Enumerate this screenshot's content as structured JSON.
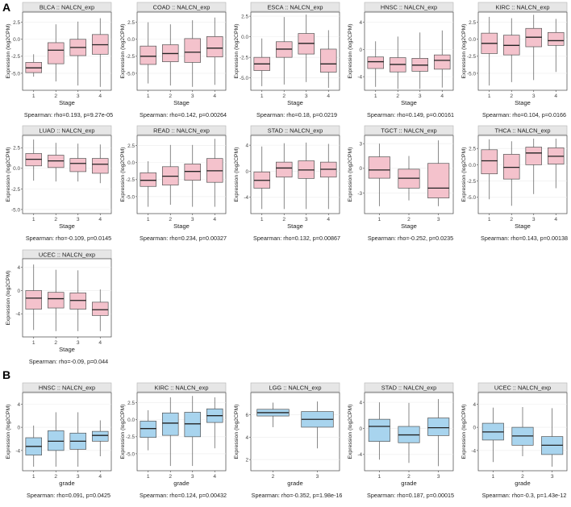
{
  "panel_labels": {
    "a": "A",
    "b": "B"
  },
  "colors": {
    "stage_fill": "#f4c2cc",
    "grade_fill": "#a8d4ee",
    "strip": "#e6e6e6",
    "box_line": "#555555"
  },
  "chart_data": [
    {
      "type": "boxplot",
      "panel": "A",
      "title": "BLCA :: NALCN_exp",
      "xlabel": "Stage",
      "ylabel": "Expression (log2CPM)",
      "ylim": [
        -7.5,
        4
      ],
      "yticks": [
        -5,
        -2.5,
        0,
        2.5
      ],
      "ytick_labels": [
        "-5.0",
        "-2.5",
        "0.0",
        "2.5"
      ],
      "categories": [
        "1",
        "2",
        "3",
        "4"
      ],
      "boxes": [
        {
          "wlo": -5.5,
          "q1": -4.9,
          "med": -4.2,
          "q3": -3.4,
          "whi": -2.2
        },
        {
          "wlo": -6.2,
          "q1": -3.6,
          "med": -1.6,
          "q3": -0.5,
          "whi": 2.2
        },
        {
          "wlo": -6.8,
          "q1": -2.4,
          "med": -1.2,
          "q3": 0.0,
          "whi": 2.6
        },
        {
          "wlo": -7.0,
          "q1": -2.2,
          "med": -0.8,
          "q3": 0.7,
          "whi": 3.1
        }
      ],
      "stat": "Spearman: rho=0.193, p=9.27e-05"
    },
    {
      "type": "boxplot",
      "panel": "A",
      "title": "COAD :: NALCN_exp",
      "xlabel": "Stage",
      "ylabel": "Expression (log2CPM)",
      "ylim": [
        -7.5,
        4
      ],
      "yticks": [
        -5,
        -2.5,
        0,
        2.5
      ],
      "ytick_labels": [
        "-5.0",
        "-2.5",
        "0.0",
        "2.5"
      ],
      "categories": [
        "1",
        "2",
        "3",
        "4"
      ],
      "boxes": [
        {
          "wlo": -6.5,
          "q1": -3.7,
          "med": -2.5,
          "q3": -1.0,
          "whi": 2.5
        },
        {
          "wlo": -6.8,
          "q1": -3.3,
          "med": -2.1,
          "q3": -0.8,
          "whi": 2.2
        },
        {
          "wlo": -7.0,
          "q1": -3.4,
          "med": -1.9,
          "q3": 0.1,
          "whi": 2.8
        },
        {
          "wlo": -6.7,
          "q1": -2.6,
          "med": -1.3,
          "q3": 0.4,
          "whi": 3.2
        }
      ],
      "stat": "Spearman: rho=0.142, p=0.00264"
    },
    {
      "type": "boxplot",
      "panel": "A",
      "title": "ESCA :: NALCN_exp",
      "xlabel": "Stage",
      "ylabel": "Expression (log2CPM)",
      "ylim": [
        -6.5,
        3
      ],
      "yticks": [
        -5.0,
        -2.5,
        0.0,
        2.5
      ],
      "ytick_labels": [
        "-5.0",
        "-2.5",
        "0.0",
        "2.5"
      ],
      "categories": [
        "1",
        "2",
        "3",
        "4"
      ],
      "boxes": [
        {
          "wlo": -6.0,
          "q1": -4.1,
          "med": -3.3,
          "q3": -2.5,
          "whi": -0.2
        },
        {
          "wlo": -5.8,
          "q1": -2.5,
          "med": -1.5,
          "q3": -0.6,
          "whi": 2.4
        },
        {
          "wlo": -5.5,
          "q1": -2.1,
          "med": -0.8,
          "q3": 0.4,
          "whi": 2.7
        },
        {
          "wlo": -6.2,
          "q1": -4.3,
          "med": -3.3,
          "q3": -1.5,
          "whi": 0.8
        }
      ],
      "stat": "Spearman: rho=0.18, p=0.0219"
    },
    {
      "type": "boxplot",
      "panel": "A",
      "title": "HNSC :: NALCN_exp",
      "xlabel": "Stage",
      "ylabel": "Expression (log2CPM)",
      "ylim": [
        -6,
        5.5
      ],
      "yticks": [
        -4,
        0,
        4
      ],
      "ytick_labels": [
        "-4",
        "0",
        "4"
      ],
      "categories": [
        "1",
        "2",
        "3",
        "4"
      ],
      "boxes": [
        {
          "wlo": -5.5,
          "q1": -2.8,
          "med": -1.8,
          "q3": -1.1,
          "whi": 1.2
        },
        {
          "wlo": -5.8,
          "q1": -3.3,
          "med": -2.2,
          "q3": -1.2,
          "whi": 1.9
        },
        {
          "wlo": -5.8,
          "q1": -3.2,
          "med": -2.3,
          "q3": -1.3,
          "whi": 2.5
        },
        {
          "wlo": -5.6,
          "q1": -2.9,
          "med": -1.6,
          "q3": -0.8,
          "whi": 2.8
        }
      ],
      "stat": "Spearman: rho=0.149, p=0.00161"
    },
    {
      "type": "boxplot",
      "panel": "A",
      "title": "KIRC :: NALCN_exp",
      "xlabel": "Stage",
      "ylabel": "Expression (log2CPM)",
      "ylim": [
        -7.5,
        4
      ],
      "yticks": [
        -5,
        -2.5,
        0,
        2.5
      ],
      "ytick_labels": [
        "-5.0",
        "-2.5",
        "0.0",
        "2.5"
      ],
      "categories": [
        "1",
        "2",
        "3",
        "4"
      ],
      "boxes": [
        {
          "wlo": -6.8,
          "q1": -2.1,
          "med": -0.6,
          "q3": 0.9,
          "whi": 3.3
        },
        {
          "wlo": -6.3,
          "q1": -2.3,
          "med": -0.9,
          "q3": 0.6,
          "whi": 3.1
        },
        {
          "wlo": -6.0,
          "q1": -1.1,
          "med": 0.3,
          "q3": 1.6,
          "whi": 3.6
        },
        {
          "wlo": -4.8,
          "q1": -0.9,
          "med": -0.2,
          "q3": 1.0,
          "whi": 3.0
        }
      ],
      "stat": "Spearman: rho=0.104, p=0.0166"
    },
    {
      "type": "boxplot",
      "panel": "A",
      "title": "LUAD :: NALCN_exp",
      "xlabel": "Stage",
      "ylabel": "Expression (log2CPM)",
      "ylim": [
        -5.5,
        4
      ],
      "yticks": [
        -5,
        -2.5,
        0,
        2.5
      ],
      "ytick_labels": [
        "-5.0",
        "-2.5",
        "0.0",
        "2.5"
      ],
      "categories": [
        "1",
        "2",
        "3",
        "4"
      ],
      "boxes": [
        {
          "wlo": -1.5,
          "q1": 0.3,
          "med": 1.1,
          "q3": 1.8,
          "whi": 3.5
        },
        {
          "wlo": -1.6,
          "q1": 0.1,
          "med": 0.9,
          "q3": 1.6,
          "whi": 3.1
        },
        {
          "wlo": -1.6,
          "q1": -0.4,
          "med": 0.6,
          "q3": 1.2,
          "whi": 3.0
        },
        {
          "wlo": -1.8,
          "q1": -0.6,
          "med": 0.5,
          "q3": 1.2,
          "whi": 2.9
        }
      ],
      "stat": "Spearman: rho=-0.109, p=0.0145"
    },
    {
      "type": "boxplot",
      "panel": "A",
      "title": "READ :: NALCN_exp",
      "xlabel": "Stage",
      "ylabel": "Expression (log2CPM)",
      "ylim": [
        -7.5,
        4
      ],
      "yticks": [
        -5,
        -2.5,
        0,
        2.5
      ],
      "ytick_labels": [
        "-5.0",
        "-2.5",
        "0.0",
        "2.5"
      ],
      "categories": [
        "1",
        "2",
        "3",
        "4"
      ],
      "boxes": [
        {
          "wlo": -6.5,
          "q1": -3.5,
          "med": -2.6,
          "q3": -1.5,
          "whi": 0.2
        },
        {
          "wlo": -6.2,
          "q1": -3.3,
          "med": -2.0,
          "q3": -0.6,
          "whi": 2.6
        },
        {
          "wlo": -6.5,
          "q1": -2.6,
          "med": -1.3,
          "q3": -0.2,
          "whi": 2.6
        },
        {
          "wlo": -6.5,
          "q1": -2.9,
          "med": -1.2,
          "q3": 0.6,
          "whi": 3.5
        }
      ],
      "stat": "Spearman: rho=0.234, p=0.00327"
    },
    {
      "type": "boxplot",
      "panel": "A",
      "title": "STAD :: NALCN_exp",
      "xlabel": "Stage",
      "ylabel": "Expression (log2CPM)",
      "ylim": [
        -6.5,
        5.5
      ],
      "yticks": [
        -4,
        0,
        4
      ],
      "ytick_labels": [
        "-4",
        "0",
        "4"
      ],
      "categories": [
        "1",
        "2",
        "3",
        "4"
      ],
      "boxes": [
        {
          "wlo": -5.8,
          "q1": -2.6,
          "med": -1.4,
          "q3": -0.1,
          "whi": 3.8
        },
        {
          "wlo": -5.8,
          "q1": -0.9,
          "med": 0.5,
          "q3": 1.4,
          "whi": 4.3
        },
        {
          "wlo": -5.8,
          "q1": -1.1,
          "med": 0.2,
          "q3": 1.6,
          "whi": 4.4
        },
        {
          "wlo": -5.8,
          "q1": -0.9,
          "med": 0.3,
          "q3": 1.4,
          "whi": 4.2
        }
      ],
      "stat": "Spearman: rho=0.132, p=0.00867"
    },
    {
      "type": "boxplot",
      "panel": "A",
      "title": "TGCT :: NALCN_exp",
      "xlabel": "Stage",
      "ylabel": "Expression (log2CPM)",
      "ylim": [
        -5.5,
        4
      ],
      "yticks": [
        -3,
        0,
        3
      ],
      "ytick_labels": [
        "-3",
        "0",
        "3"
      ],
      "categories": [
        "1",
        "2",
        "3"
      ],
      "boxes": [
        {
          "wlo": -4.6,
          "q1": -1.2,
          "med": -0.2,
          "q3": 1.4,
          "whi": 3.0
        },
        {
          "wlo": -3.9,
          "q1": -2.4,
          "med": -1.2,
          "q3": -0.1,
          "whi": 1.5
        },
        {
          "wlo": -4.6,
          "q1": -3.6,
          "med": -2.4,
          "q3": 0.6,
          "whi": 3.4
        }
      ],
      "stat": "Spearman: rho=-0.252, p=0.0235"
    },
    {
      "type": "boxplot",
      "panel": "A",
      "title": "THCA :: NALCN_exp",
      "xlabel": "Stage",
      "ylabel": "Expression (log2CPM)",
      "ylim": [
        -7.5,
        4.5
      ],
      "yticks": [
        -5,
        -2.5,
        0,
        2.5
      ],
      "ytick_labels": [
        "-5.0",
        "-2.5",
        "0.0",
        "2.5"
      ],
      "categories": [
        "1",
        "2",
        "3",
        "4"
      ],
      "boxes": [
        {
          "wlo": -5.3,
          "q1": -1.4,
          "med": 0.6,
          "q3": 2.3,
          "whi": 3.9
        },
        {
          "wlo": -6.3,
          "q1": -2.2,
          "med": -0.4,
          "q3": 1.6,
          "whi": 3.6
        },
        {
          "wlo": -4.5,
          "q1": 0.0,
          "med": 1.8,
          "q3": 2.7,
          "whi": 4.0
        },
        {
          "wlo": -3.6,
          "q1": 0.1,
          "med": 1.3,
          "q3": 2.6,
          "whi": 4.0
        }
      ],
      "stat": "Spearman: rho=0.143, p=0.00138"
    },
    {
      "type": "boxplot",
      "panel": "A",
      "title": "UCEC :: NALCN_exp",
      "xlabel": "Stage",
      "ylabel": "Expression (log2CPM)",
      "ylim": [
        -8,
        5.5
      ],
      "yticks": [
        -4,
        0,
        4
      ],
      "ytick_labels": [
        "-4",
        "0",
        "4"
      ],
      "categories": [
        "1",
        "2",
        "3",
        "4"
      ],
      "boxes": [
        {
          "wlo": -6.8,
          "q1": -3.2,
          "med": -1.3,
          "q3": 0.0,
          "whi": 4.5
        },
        {
          "wlo": -7.0,
          "q1": -3.0,
          "med": -1.4,
          "q3": -0.3,
          "whi": 3.6
        },
        {
          "wlo": -7.0,
          "q1": -3.2,
          "med": -1.7,
          "q3": -0.4,
          "whi": 3.5
        },
        {
          "wlo": -7.0,
          "q1": -4.3,
          "med": -3.3,
          "q3": -2.0,
          "whi": 0.2
        }
      ],
      "stat": "Spearman: rho=-0.09, p=0.044"
    },
    {
      "type": "boxplot",
      "panel": "B",
      "title": "HNSC :: NALCN_exp",
      "xlabel": "grade",
      "ylabel": "Expression (log2CPM)",
      "ylim": [
        -7.5,
        6
      ],
      "yticks": [
        -4,
        0,
        4
      ],
      "ytick_labels": [
        "-4",
        "0",
        "4"
      ],
      "categories": [
        "1",
        "2",
        "3",
        "4"
      ],
      "boxes": [
        {
          "wlo": -6.8,
          "q1": -4.8,
          "med": -3.3,
          "q3": -1.8,
          "whi": 0.3
        },
        {
          "wlo": -6.8,
          "q1": -4.0,
          "med": -2.4,
          "q3": -0.6,
          "whi": 2.6
        },
        {
          "wlo": -6.8,
          "q1": -3.8,
          "med": -2.4,
          "q3": -1.0,
          "whi": 2.6
        },
        {
          "wlo": -5.0,
          "q1": -2.4,
          "med": -1.4,
          "q3": -0.7,
          "whi": 1.2
        }
      ],
      "stat": "Spearman: rho=0.091, p=0.0425"
    },
    {
      "type": "boxplot",
      "panel": "B",
      "title": "KIRC :: NALCN_exp",
      "xlabel": "grade",
      "ylabel": "Expression (log2CPM)",
      "ylim": [
        -7.5,
        4
      ],
      "yticks": [
        -5,
        -2.5,
        0,
        2.5
      ],
      "ytick_labels": [
        "-5.0",
        "-2.5",
        "0.0",
        "2.5"
      ],
      "categories": [
        "1",
        "2",
        "3",
        "4"
      ],
      "boxes": [
        {
          "wlo": -4.5,
          "q1": -2.6,
          "med": -1.3,
          "q3": -0.2,
          "whi": 1.4
        },
        {
          "wlo": -6.8,
          "q1": -2.3,
          "med": -0.5,
          "q3": 1.0,
          "whi": 3.3
        },
        {
          "wlo": -6.8,
          "q1": -2.5,
          "med": -0.6,
          "q3": 1.1,
          "whi": 3.5
        },
        {
          "wlo": -4.2,
          "q1": -0.4,
          "med": 0.6,
          "q3": 1.6,
          "whi": 3.3
        }
      ],
      "stat": "Spearman: rho=0.124, p=0.00432"
    },
    {
      "type": "boxplot",
      "panel": "B",
      "title": "LGG :: NALCN_exp",
      "xlabel": "grade",
      "ylabel": "Expression (log2CPM)",
      "ylim": [
        1,
        8
      ],
      "yticks": [
        2,
        4,
        6
      ],
      "ytick_labels": [
        "2",
        "4",
        "6"
      ],
      "categories": [
        "2",
        "3"
      ],
      "boxes": [
        {
          "wlo": 4.9,
          "q1": 5.9,
          "med": 6.2,
          "q3": 6.5,
          "whi": 7.1
        },
        {
          "wlo": 3.0,
          "q1": 4.9,
          "med": 5.6,
          "q3": 6.3,
          "whi": 7.2
        }
      ],
      "stat": "Spearman: rho=-0.352, p=1.98e-16"
    },
    {
      "type": "boxplot",
      "panel": "B",
      "title": "STAD :: NALCN_exp",
      "xlabel": "grade",
      "ylabel": "Expression (log2CPM)",
      "ylim": [
        -6.5,
        5.5
      ],
      "yticks": [
        -4,
        0,
        4
      ],
      "ytick_labels": [
        "-4",
        "0",
        "4"
      ],
      "categories": [
        "1",
        "2",
        "3"
      ],
      "boxes": [
        {
          "wlo": -4.8,
          "q1": -2.0,
          "med": 0.3,
          "q3": 1.4,
          "whi": 4.0
        },
        {
          "wlo": -5.3,
          "q1": -2.2,
          "med": -1.0,
          "q3": 0.3,
          "whi": 3.9
        },
        {
          "wlo": -5.8,
          "q1": -1.1,
          "med": 0.1,
          "q3": 1.6,
          "whi": 4.5
        }
      ],
      "stat": "Spearman: rho=0.187, p=0.00015"
    },
    {
      "type": "boxplot",
      "panel": "B",
      "title": "UCEC :: NALCN_exp",
      "xlabel": "grade",
      "ylabel": "Expression (log2CPM)",
      "ylim": [
        -7.5,
        6
      ],
      "yticks": [
        -4,
        0,
        4
      ],
      "ytick_labels": [
        "-4",
        "0",
        "4"
      ],
      "categories": [
        "1",
        "2",
        "3"
      ],
      "boxes": [
        {
          "wlo": -6.0,
          "q1": -2.2,
          "med": -0.8,
          "q3": 0.7,
          "whi": 3.4
        },
        {
          "wlo": -5.0,
          "q1": -3.1,
          "med": -1.5,
          "q3": 0.0,
          "whi": 3.5
        },
        {
          "wlo": -6.8,
          "q1": -4.7,
          "med": -3.1,
          "q3": -1.6,
          "whi": 3.3
        }
      ],
      "stat": "Spearman: rho=-0.3, p=1.43e-12"
    }
  ]
}
